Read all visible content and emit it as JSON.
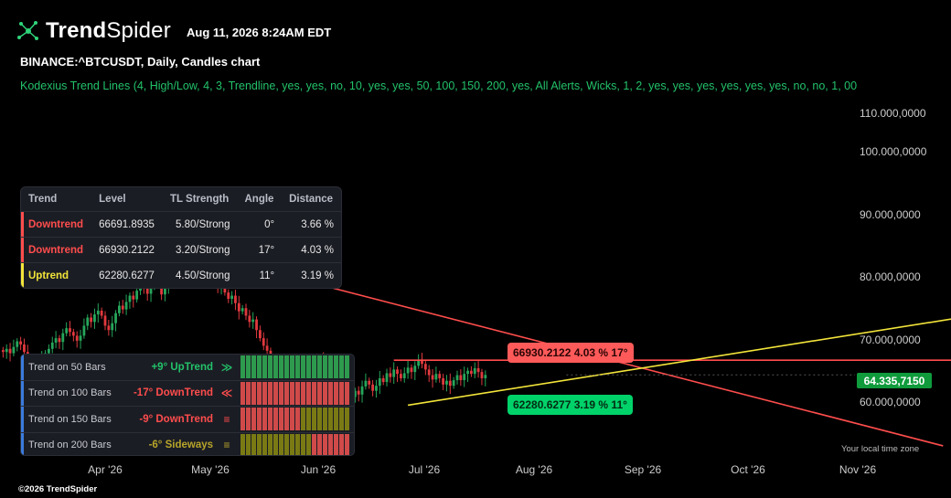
{
  "brand": {
    "bold": "Trend",
    "light": "Spider"
  },
  "header": {
    "timestamp": "Aug 11, 2026 8:24AM EDT",
    "symbol": "BINANCE:^BTCUSDT, Daily, Candles chart",
    "indicator": "Kodexius Trend Lines (4, High/Low, 4, 3, Trendline, yes, yes, no, 10, yes, yes, 50, 100, 150, 200, yes, All Alerts, Wicks, 1, 2, yes, yes, yes, yes, yes, yes, no, no, 1, 00"
  },
  "footer": {
    "copyright": "©2026 TrendSpider",
    "timezone": "Your local time zone"
  },
  "colors": {
    "up_candle": "#26a65b",
    "down_candle": "#e0393e",
    "resistance": "#ff4d4d",
    "support": "#f3e53a",
    "tag_green": "#0f9b3c",
    "mtf_green": "#2e9a4e",
    "mtf_red": "#d04a4a",
    "mtf_olive": "#7a7a14"
  },
  "trend_table": {
    "headers": [
      "Trend",
      "Level",
      "TL Strength",
      "Angle",
      "Distance"
    ],
    "rows": [
      {
        "trend": "Downtrend",
        "level": "66691.8935",
        "strength": "5.80/Strong",
        "angle": "0°",
        "distance": "3.66 %"
      },
      {
        "trend": "Downtrend",
        "level": "66930.2122",
        "strength": "3.20/Strong",
        "angle": "17°",
        "distance": "4.03 %"
      },
      {
        "trend": "Uptrend",
        "level": "62280.6277",
        "strength": "4.50/Strong",
        "angle": "11°",
        "distance": "3.19 %"
      }
    ]
  },
  "mtf_table": {
    "rows": [
      {
        "label": "Trend on 50 Bars",
        "value": "+9° UpTrend",
        "arrow": "≫",
        "color": "#23c16a",
        "pattern": "g20"
      },
      {
        "label": "Trend on 100 Bars",
        "value": "-17° DownTrend",
        "arrow": "≪",
        "color": "#ff4d4d",
        "pattern": "r20"
      },
      {
        "label": "Trend on 150 Bars",
        "value": "-9° DownTrend",
        "arrow": "≡",
        "color": "#ff4d4d",
        "pattern": "r11o9"
      },
      {
        "label": "Trend on 200 Bars",
        "value": "-6° Sideways",
        "arrow": "≡",
        "color": "#b7a52a",
        "pattern": "o13r7"
      }
    ]
  },
  "annotations": {
    "red_label": "66930.2122 4.03 % 17°",
    "green_label": "62280.6277 3.19 % 11°",
    "last_price": "64.335,7150"
  },
  "chart_data": {
    "type": "candlestick",
    "title": "BINANCE:^BTCUSDT, Daily, Candles chart",
    "y_ticks": [
      "110.000,0000",
      "100.000,0000",
      "90.000,0000",
      "80.000,0000",
      "70.000,0000",
      "60.000,0000"
    ],
    "y_tick_values": [
      110000,
      100000,
      90000,
      80000,
      70000,
      60000
    ],
    "x_ticks": [
      "Apr '26",
      "May '26",
      "Jun '26",
      "Jul '26",
      "Aug '26",
      "Sep '26",
      "Oct '26",
      "Nov '26"
    ],
    "start_date": "2026-03-03",
    "last_price": 64335.715,
    "trendlines": [
      {
        "name": "resistance-horizontal",
        "x": [
          "2026-06-22",
          "2026-11-30"
        ],
        "y": [
          66691.89,
          66691.89
        ]
      },
      {
        "name": "resistance-falling",
        "x": [
          "2026-05-13",
          "2026-11-25"
        ],
        "y": [
          81500,
          53000
        ]
      },
      {
        "name": "support-rising",
        "x": [
          "2026-06-26",
          "2026-11-30"
        ],
        "y": [
          59500,
          73500
        ]
      }
    ],
    "closes": [
      68000,
      68500,
      67800,
      68800,
      69700,
      69200,
      68000,
      67000,
      66200,
      66700,
      65800,
      67000,
      67800,
      68500,
      69500,
      70200,
      69600,
      71000,
      71800,
      71200,
      70600,
      69800,
      70600,
      72200,
      73500,
      72800,
      74000,
      74600,
      73800,
      72200,
      71500,
      72600,
      74200,
      75400,
      74800,
      76000,
      77000,
      76400,
      77800,
      78700,
      78200,
      77300,
      78400,
      79500,
      78800,
      77200,
      78600,
      80500,
      80000,
      79000,
      80200,
      81500,
      81000,
      80200,
      81200,
      82000,
      80800,
      79500,
      78800,
      80000,
      79000,
      78500,
      79000,
      77500,
      76500,
      77000,
      75800,
      74500,
      75000,
      73800,
      72800,
      73200,
      71500,
      70200,
      69000,
      68200,
      67000,
      65500,
      64800,
      64000,
      63500,
      64200,
      63000,
      62000,
      63500,
      64500,
      63500,
      64200,
      65500,
      66300,
      66800,
      66200,
      65000,
      64000,
      62500,
      61000,
      59800,
      60500,
      59500,
      60800,
      61800,
      61200,
      62500,
      63400,
      62800,
      61800,
      62600,
      63800,
      63200,
      64600,
      64000,
      65200,
      64500,
      63800,
      64600,
      65500,
      64800,
      65800,
      66700,
      66100,
      65200,
      64300,
      63600,
      64500,
      63800,
      62800,
      63400,
      62600,
      63500,
      64300,
      63500,
      64500,
      65000,
      64500,
      65400,
      64800,
      63800,
      64335.7
    ]
  }
}
